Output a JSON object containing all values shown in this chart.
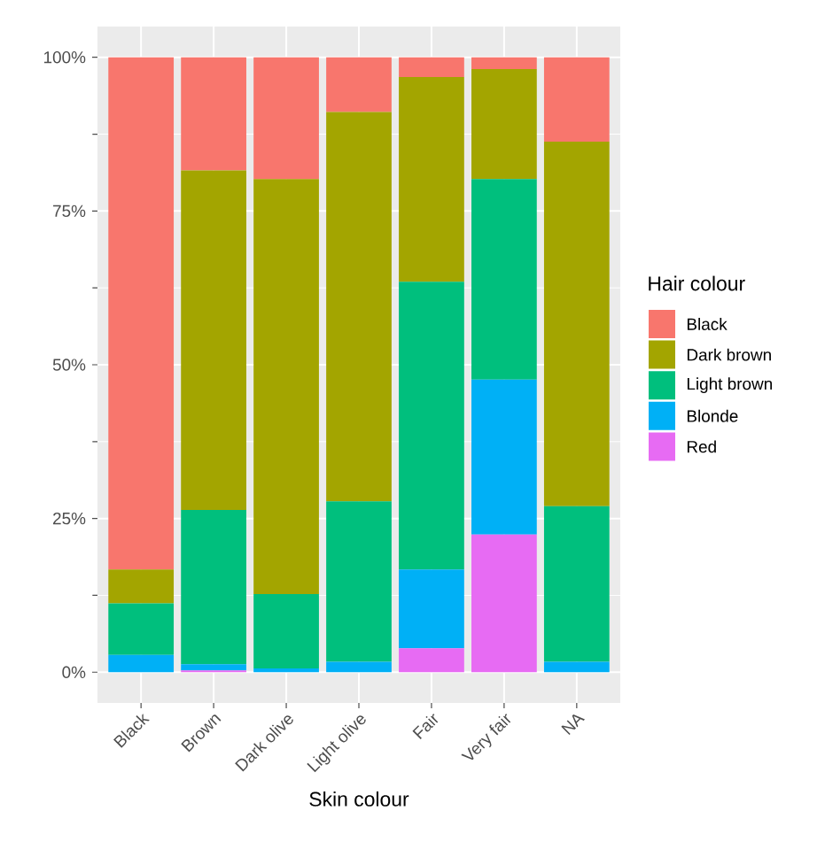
{
  "chart_data": {
    "type": "bar",
    "stacked": true,
    "xlabel": "Skin colour",
    "legend_title": "Hair colour",
    "legend": "right",
    "grid": true,
    "categories": [
      "Black",
      "Brown",
      "Dark olive",
      "Light olive",
      "Fair",
      "Very fair",
      "NA"
    ],
    "ylim": [
      -5,
      105
    ],
    "yticks": [
      {
        "value": 0,
        "label": "0%"
      },
      {
        "value": 25,
        "label": "25%"
      },
      {
        "value": 50,
        "label": "50%"
      },
      {
        "value": 75,
        "label": "75%"
      },
      {
        "value": 100,
        "label": "100%"
      }
    ],
    "series": [
      {
        "name": "Red",
        "color": "#e76bf3",
        "values": [
          0,
          0.3,
          0,
          0,
          3.9,
          22.4,
          0
        ]
      },
      {
        "name": "Blonde",
        "color": "#00b0f6",
        "values": [
          2.8,
          1.0,
          0.6,
          1.7,
          12.8,
          25.2,
          1.7
        ]
      },
      {
        "name": "Light brown",
        "color": "#00bf7d",
        "values": [
          8.4,
          25.1,
          12.1,
          26.1,
          46.8,
          32.6,
          25.3
        ]
      },
      {
        "name": "Dark brown",
        "color": "#a3a500",
        "values": [
          5.5,
          55.2,
          67.5,
          63.3,
          33.3,
          17.9,
          59.3
        ]
      },
      {
        "name": "Black",
        "color": "#f8766d",
        "values": [
          83.3,
          18.4,
          19.8,
          8.9,
          3.2,
          1.9,
          13.7
        ]
      }
    ]
  }
}
